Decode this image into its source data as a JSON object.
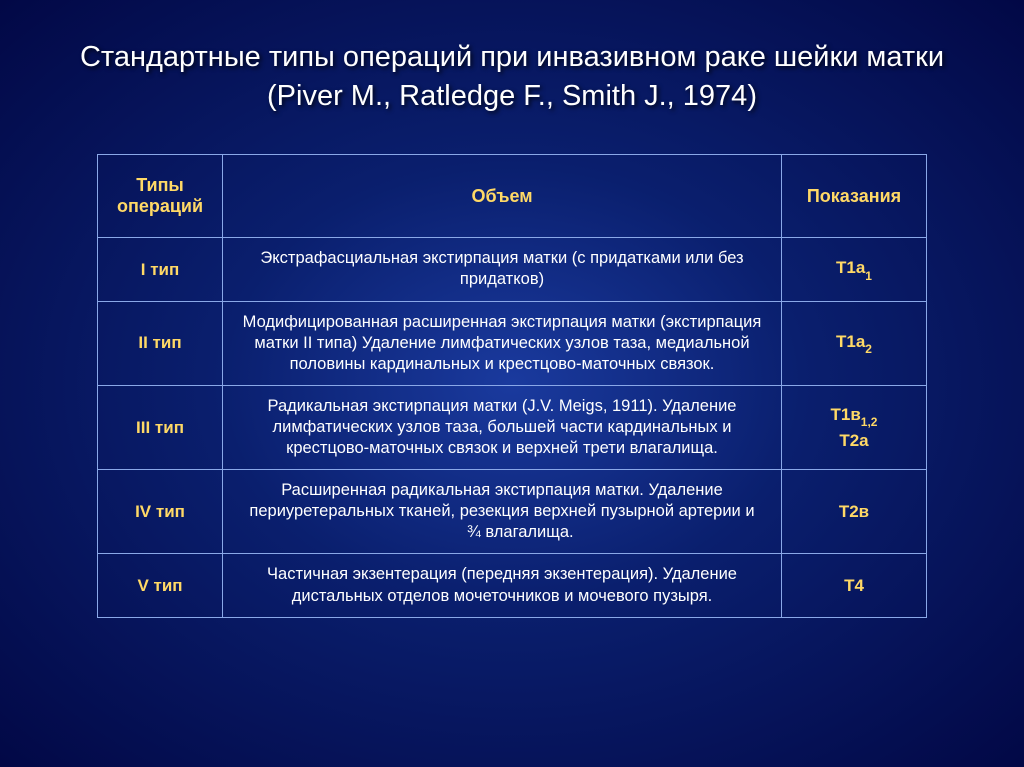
{
  "title": "Стандартные типы операций при инвазивном раке шейки матки (Piver M., Ratledge F., Smith J., 1974)",
  "headers": {
    "type": "Типы операций",
    "volume": "Объем",
    "indication": "Показания"
  },
  "rows": [
    {
      "type": "I тип",
      "volume": "Экстрафасциальная экстирпация матки (с придатками или без придатков)",
      "indication_html": "T1a<span class='subs'>1</span>"
    },
    {
      "type": "II тип",
      "volume": "Модифицированная расширенная экстирпация матки (экстирпация матки II типа) Удаление лимфатических узлов таза, медиальной половины кардинальных и крестцово-маточных связок.",
      "indication_html": "T1a<span class='subs'>2</span>"
    },
    {
      "type": "III тип",
      "volume": "Радикальная  экстирпация матки (J.V. Meigs, 1911). Удаление лимфатических узлов таза, большей части кардинальных и крестцово-маточных связок и верхней трети влагалища.",
      "indication_html": "T1в<span class='subs'>1,2</span><br>T2a"
    },
    {
      "type": "IV тип",
      "volume": "Расширенная радикальная экстирпация матки. Удаление периуретеральных тканей, резекция верхней пузырной артерии и &nbsp;&nbsp;&nbsp;&nbsp;&nbsp;&nbsp;&nbsp;&nbsp;¾ влагалища.",
      "indication_html": "T2в"
    },
    {
      "type": "V тип",
      "volume": "Частичная экзентерация (передняя экзентерация). Удаление дистальных отделов мочеточников и мочевого пузыря.",
      "indication_html": "T4"
    }
  ],
  "colors": {
    "heading_text": "#ffd966",
    "body_text": "#ffffff",
    "border": "#8aa8e8",
    "bg_inner": "#1a3a9e",
    "bg_outer": "#020846"
  },
  "fonts": {
    "title_size_pt": 29,
    "header_size_pt": 18,
    "cell_size_pt": 16.5
  }
}
